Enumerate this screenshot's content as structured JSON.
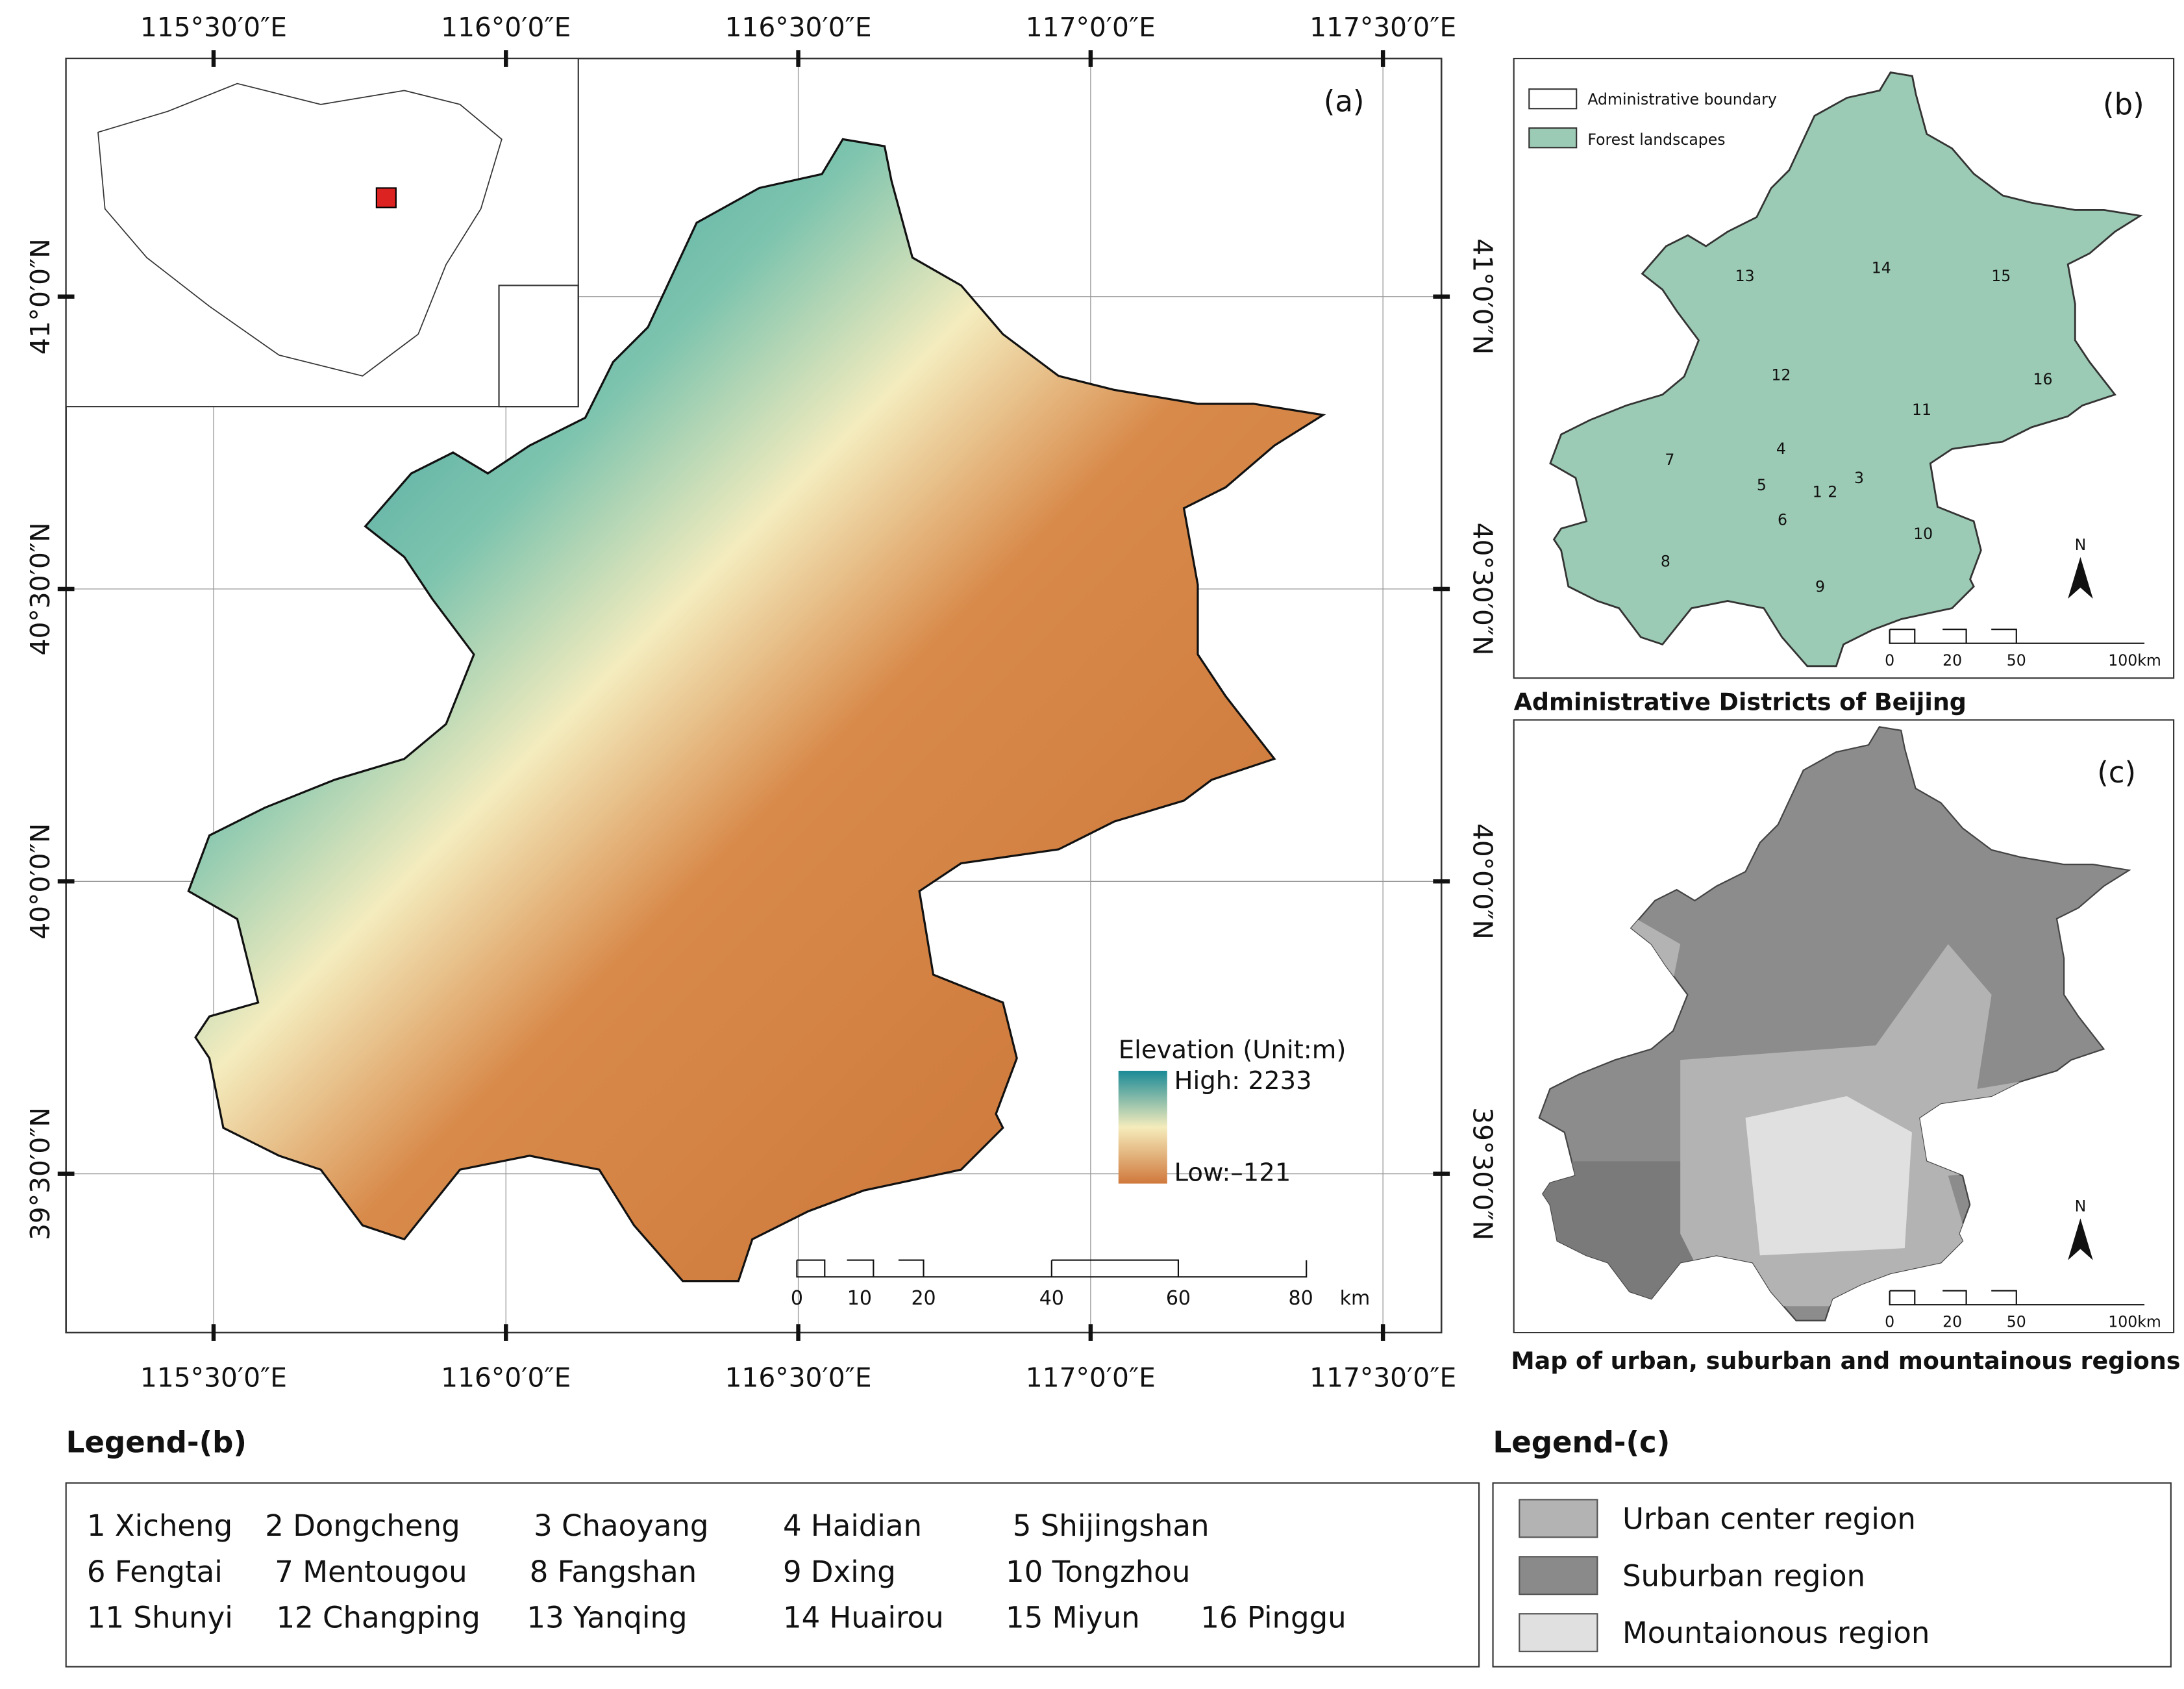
{
  "panel_a": {
    "label": "(a)",
    "top_lon_labels": [
      "115°30′0″E",
      "116°0′0″E",
      "116°30′0″E",
      "117°0′0″E",
      "117°30′0″E"
    ],
    "bottom_lon_labels": [
      "115°30′0″E",
      "116°0′0″E",
      "116°30′0″E",
      "117°0′0″E",
      "117°30′0″E"
    ],
    "left_lat_labels": [
      "41°0′0″N",
      "40°30′0″N",
      "40°0′0″N",
      "39°30′0″N"
    ],
    "right_lat_labels": [
      "41°0′0″N",
      "40°30′0″N",
      "40°0′0″N",
      "39°30′0″N"
    ],
    "legend_title": "Elevation (Unit:m)",
    "legend_high": "High: 2233",
    "legend_low": "Low:–121",
    "scale_labels": [
      "0",
      "10",
      "20",
      "40",
      "60",
      "80"
    ],
    "scale_unit": "km"
  },
  "panel_b": {
    "label": "(b)",
    "legend": [
      "Administrative boundary",
      "Forest landscapes"
    ],
    "district_numbers": [
      "1",
      "2",
      "3",
      "4",
      "5",
      "6",
      "7",
      "8",
      "9",
      "10",
      "11",
      "12",
      "13",
      "14",
      "15",
      "16"
    ],
    "north": "N",
    "scale_labels": [
      "0",
      "20",
      "50",
      "100km"
    ],
    "caption": "Administrative Districts of Beijing"
  },
  "panel_c": {
    "label": "(c)",
    "north": "N",
    "scale_labels": [
      "0",
      "20",
      "50",
      "100km"
    ],
    "caption": "Map of urban, suburban and mountainous regions"
  },
  "legend_b": {
    "title": "Legend-(b)",
    "items": [
      "1 Xicheng",
      "2 Dongcheng",
      "3 Chaoyang",
      "4 Haidian",
      "5 Shijingshan",
      "6 Fengtai",
      "7 Mentougou",
      "8 Fangshan",
      "9 Dxing",
      "10 Tongzhou",
      "11 Shunyi",
      "12 Changping",
      "13 Yanqing",
      "14 Huairou",
      "15 Miyun",
      "16 Pinggu"
    ]
  },
  "legend_c": {
    "title": "Legend-(c)",
    "items": [
      "Urban center region",
      "Suburban region",
      "Mountaionous region"
    ]
  }
}
